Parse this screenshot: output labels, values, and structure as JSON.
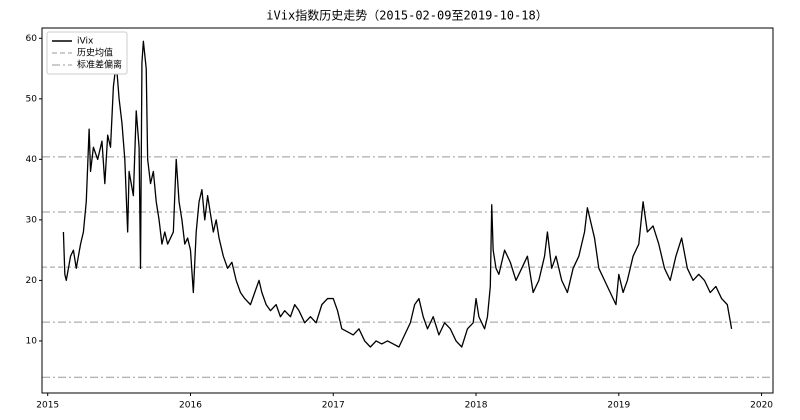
{
  "chart_data": {
    "type": "line",
    "title": "iVix指数历史走势（2015-02-09至2019-10-18）",
    "x": [
      2015.11,
      2015.12,
      2015.13,
      2015.16,
      2015.18,
      2015.2,
      2015.23,
      2015.25,
      2015.27,
      2015.29,
      2015.3,
      2015.32,
      2015.35,
      2015.38,
      2015.4,
      2015.42,
      2015.44,
      2015.46,
      2015.48,
      2015.5,
      2015.52,
      2015.54,
      2015.56,
      2015.57,
      2015.6,
      2015.62,
      2015.64,
      2015.65,
      2015.66,
      2015.67,
      2015.69,
      2015.7,
      2015.72,
      2015.74,
      2015.76,
      2015.78,
      2015.8,
      2015.82,
      2015.84,
      2015.86,
      2015.88,
      2015.9,
      2015.92,
      2015.94,
      2015.96,
      2015.98,
      2016.0,
      2016.02,
      2016.04,
      2016.06,
      2016.08,
      2016.1,
      2016.12,
      2016.14,
      2016.16,
      2016.18,
      2016.2,
      2016.23,
      2016.26,
      2016.29,
      2016.32,
      2016.35,
      2016.38,
      2016.42,
      2016.45,
      2016.48,
      2016.5,
      2016.53,
      2016.56,
      2016.6,
      2016.63,
      2016.66,
      2016.7,
      2016.73,
      2016.76,
      2016.8,
      2016.84,
      2016.88,
      2016.92,
      2016.96,
      2017.0,
      2017.03,
      2017.06,
      2017.1,
      2017.14,
      2017.18,
      2017.22,
      2017.26,
      2017.3,
      2017.34,
      2017.38,
      2017.42,
      2017.46,
      2017.5,
      2017.54,
      2017.57,
      2017.6,
      2017.63,
      2017.66,
      2017.7,
      2017.74,
      2017.78,
      2017.82,
      2017.86,
      2017.9,
      2017.94,
      2017.98,
      2018.0,
      2018.02,
      2018.04,
      2018.06,
      2018.08,
      2018.1,
      2018.11,
      2018.12,
      2018.14,
      2018.16,
      2018.2,
      2018.24,
      2018.28,
      2018.32,
      2018.36,
      2018.4,
      2018.44,
      2018.48,
      2018.5,
      2018.53,
      2018.56,
      2018.6,
      2018.64,
      2018.68,
      2018.72,
      2018.76,
      2018.78,
      2018.8,
      2018.83,
      2018.86,
      2018.9,
      2018.94,
      2018.98,
      2019.0,
      2019.03,
      2019.06,
      2019.1,
      2019.14,
      2019.17,
      2019.2,
      2019.24,
      2019.28,
      2019.32,
      2019.36,
      2019.4,
      2019.44,
      2019.48,
      2019.52,
      2019.56,
      2019.6,
      2019.64,
      2019.68,
      2019.72,
      2019.76,
      2019.79
    ],
    "series": [
      {
        "name": "iVix",
        "color": "#000000",
        "values": [
          28,
          21,
          20,
          24,
          25,
          22,
          26,
          28,
          33,
          45,
          38,
          42,
          40,
          43,
          36,
          44,
          42,
          52,
          56,
          50,
          46,
          40,
          28,
          38,
          34,
          48,
          42,
          22,
          56,
          59.5,
          55,
          40,
          36,
          38,
          33,
          30,
          26,
          28,
          26,
          27,
          28,
          40,
          33,
          30,
          26,
          27,
          25,
          18,
          28,
          33,
          35,
          30,
          34,
          31,
          28,
          30,
          27,
          24,
          22,
          23,
          20,
          18,
          17,
          16,
          18,
          20,
          18,
          16,
          15,
          16,
          14,
          15,
          14,
          16,
          15,
          13,
          14,
          13,
          16,
          17,
          17,
          15,
          12,
          11.5,
          11,
          12,
          10,
          9,
          10,
          9.5,
          10,
          9.5,
          9,
          11,
          13,
          16,
          17,
          14,
          12,
          14,
          11,
          13,
          12,
          10,
          9,
          12,
          13,
          17,
          14,
          13,
          12,
          14,
          19,
          32.5,
          25,
          22,
          21,
          25,
          23,
          20,
          22,
          24,
          18,
          20,
          24,
          28,
          22,
          24,
          20,
          18,
          22,
          24,
          28,
          32,
          30,
          27,
          22,
          20,
          18,
          16,
          21,
          18,
          20,
          24,
          26,
          33,
          28,
          29,
          26,
          22,
          20,
          24,
          27,
          22,
          20,
          21,
          20,
          18,
          19,
          17,
          16,
          12
        ]
      }
    ],
    "reference_lines": [
      {
        "name": "历史均值",
        "color": "#999999",
        "style": "dashed",
        "values": [
          22.2
        ]
      },
      {
        "name": "标准差偏离",
        "color": "#999999",
        "style": "dashdot",
        "values": [
          40.4,
          31.3,
          13.1,
          4.0
        ]
      }
    ],
    "xlim": [
      2014.96,
      2020.08
    ],
    "xticks": [
      2015,
      2016,
      2017,
      2018,
      2019,
      2020
    ],
    "ylim": [
      1.4,
      61.7
    ],
    "yticks": [
      10,
      20,
      30,
      40,
      50,
      60
    ],
    "legend": "upper left"
  }
}
